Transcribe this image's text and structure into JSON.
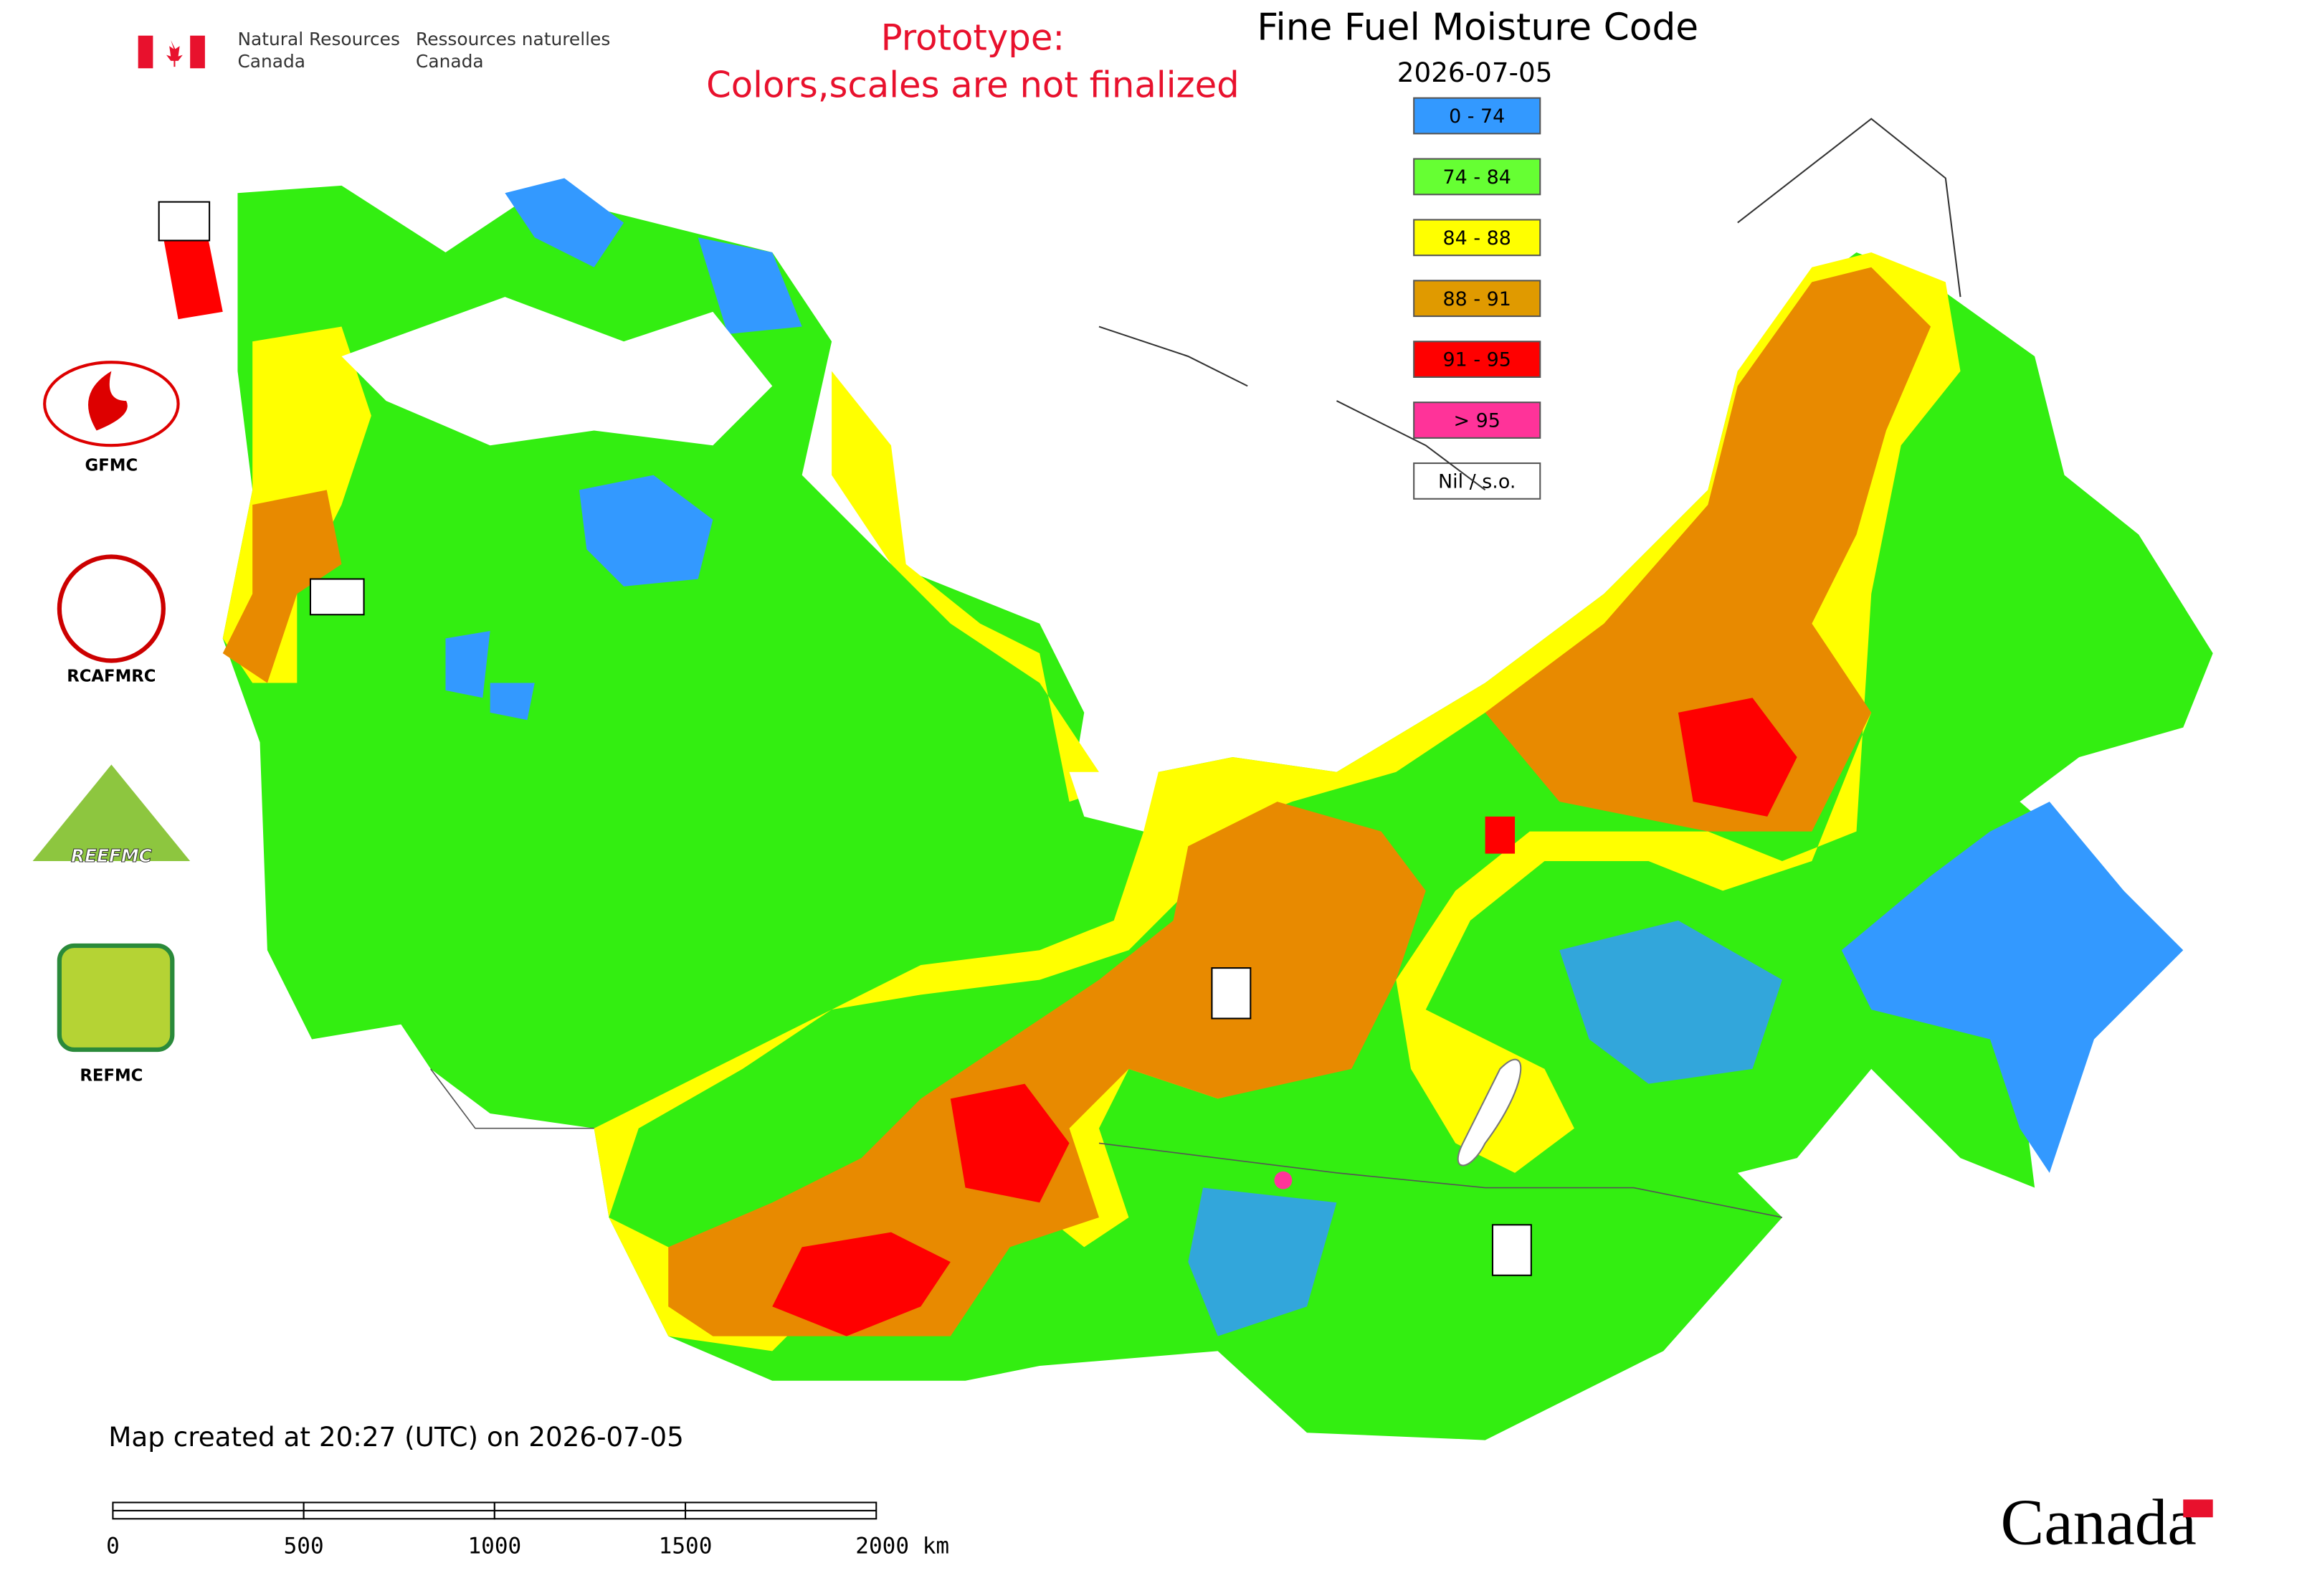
{
  "header": {
    "agency_en": [
      "Natural Resources",
      "Canada"
    ],
    "agency_fr": [
      "Ressources naturelles",
      "Canada"
    ],
    "prototype": [
      "Prototype:",
      "Colors,scales are not finalized"
    ]
  },
  "map": {
    "title": "Fine Fuel Moisture Code",
    "date": "2026-07-05",
    "legend": [
      {
        "label": "0 - 74",
        "color": "#3399ff"
      },
      {
        "label": "74 - 84",
        "color": "#66ff33"
      },
      {
        "label": "84 - 88",
        "color": "#ffff00"
      },
      {
        "label": "88 - 91",
        "color": "#e09a00"
      },
      {
        "label": "91 - 95",
        "color": "#ff0000"
      },
      {
        "label": "> 95",
        "color": "#ff3399"
      },
      {
        "label": "Nil / s.o.",
        "color": "#ffffff"
      }
    ]
  },
  "logos": [
    "GFMC",
    "RCAFMRC",
    "REEFMC",
    "REFMC"
  ],
  "footer": {
    "created": "Map created at 20:27 (UTC) on 2026-07-05",
    "scale": [
      "0",
      "500",
      "1000",
      "1500",
      "2000 km"
    ],
    "wordmark": "Canada"
  }
}
